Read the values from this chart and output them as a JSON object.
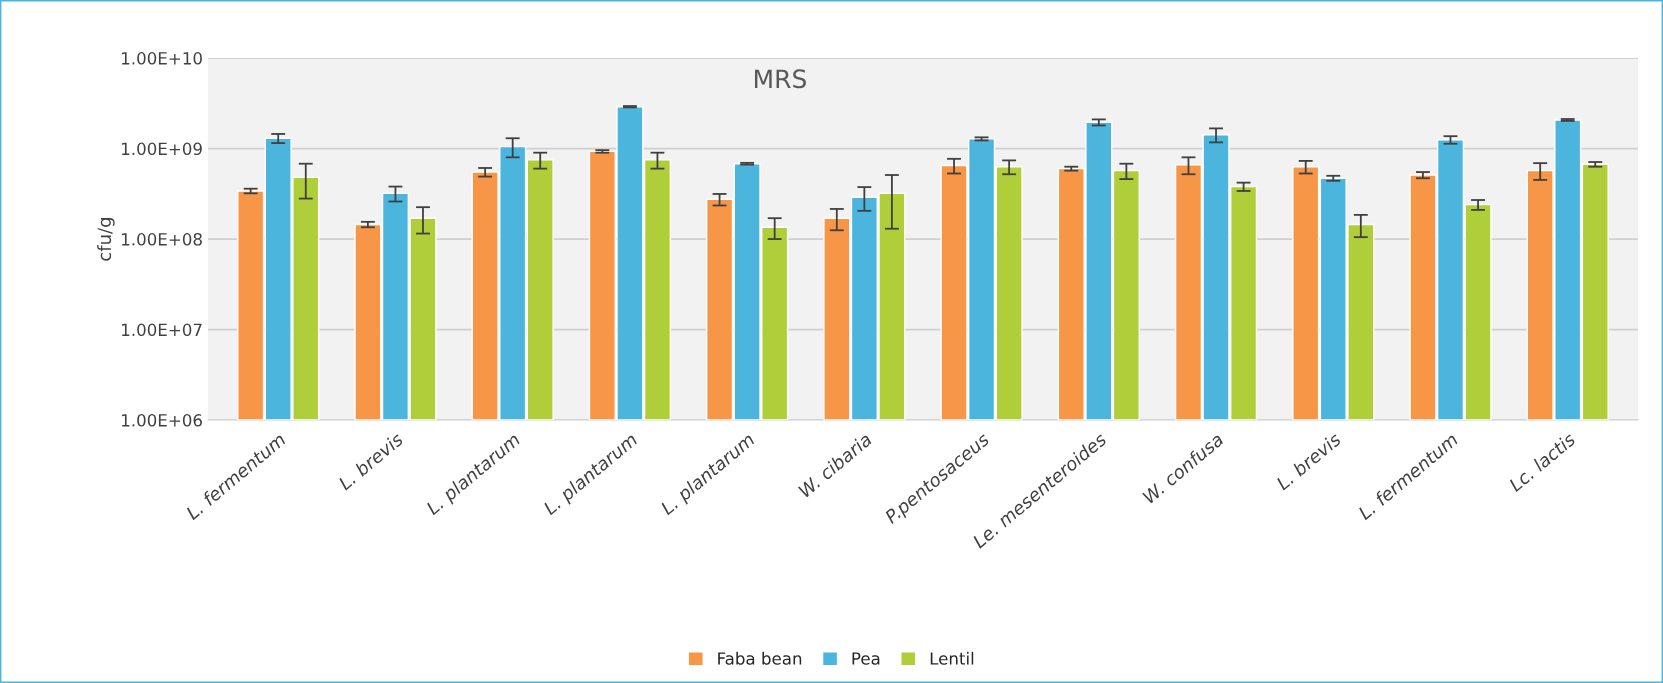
{
  "chart_data": {
    "type": "bar",
    "title": "MRS",
    "ylabel": "cfu/g",
    "categories": [
      "L. fermentum",
      "L. brevis",
      "L. plantarum",
      "L. plantarum",
      "L. plantarum",
      "W. cibaria",
      "P.pentosaceus",
      "Le. mesenteroides",
      "W. confusa",
      "L. brevis",
      "L. fermentum",
      "Lc. lactis"
    ],
    "series": [
      {
        "name": "Faba bean",
        "color": "#f79646",
        "values": [
          340000000.0,
          145000000.0,
          550000000.0,
          930000000.0,
          275000000.0,
          170000000.0,
          650000000.0,
          600000000.0,
          660000000.0,
          630000000.0,
          510000000.0,
          570000000.0
        ],
        "errors": [
          20000000.0,
          10000000.0,
          60000000.0,
          30000000.0,
          40000000.0,
          45000000.0,
          120000000.0,
          30000000.0,
          140000000.0,
          100000000.0,
          40000000.0,
          120000000.0
        ]
      },
      {
        "name": "Pea",
        "color": "#4bb5de",
        "values": [
          1300000000.0,
          320000000.0,
          1050000000.0,
          2900000000.0,
          680000000.0,
          290000000.0,
          1280000000.0,
          1950000000.0,
          1420000000.0,
          470000000.0,
          1250000000.0,
          2070000000.0
        ],
        "errors": [
          150000000.0,
          60000000.0,
          250000000.0,
          50000000.0,
          15000000.0,
          85000000.0,
          50000000.0,
          150000000.0,
          250000000.0,
          30000000.0,
          120000000.0,
          50000000.0
        ]
      },
      {
        "name": "Lentil",
        "color": "#b0cd3a",
        "values": [
          480000000.0,
          170000000.0,
          750000000.0,
          750000000.0,
          135000000.0,
          320000000.0,
          630000000.0,
          570000000.0,
          380000000.0,
          145000000.0,
          240000000.0,
          670000000.0
        ],
        "errors": [
          200000000.0,
          55000000.0,
          150000000.0,
          150000000.0,
          35000000.0,
          190000000.0,
          110000000.0,
          110000000.0,
          40000000.0,
          40000000.0,
          30000000.0,
          40000000.0
        ]
      }
    ],
    "log": "y",
    "ylim": [
      1000000.0,
      10000000000.0
    ],
    "yticks": [
      {
        "value": 1000000.0,
        "label": "1.00E+06"
      },
      {
        "value": 10000000.0,
        "label": "1.00E+07"
      },
      {
        "value": 100000000.0,
        "label": "1.00E+08"
      },
      {
        "value": 1000000000.0,
        "label": "1.00E+09"
      },
      {
        "value": 10000000000.0,
        "label": "1.00E+10"
      }
    ],
    "grid": "y",
    "legend": "bottom"
  }
}
